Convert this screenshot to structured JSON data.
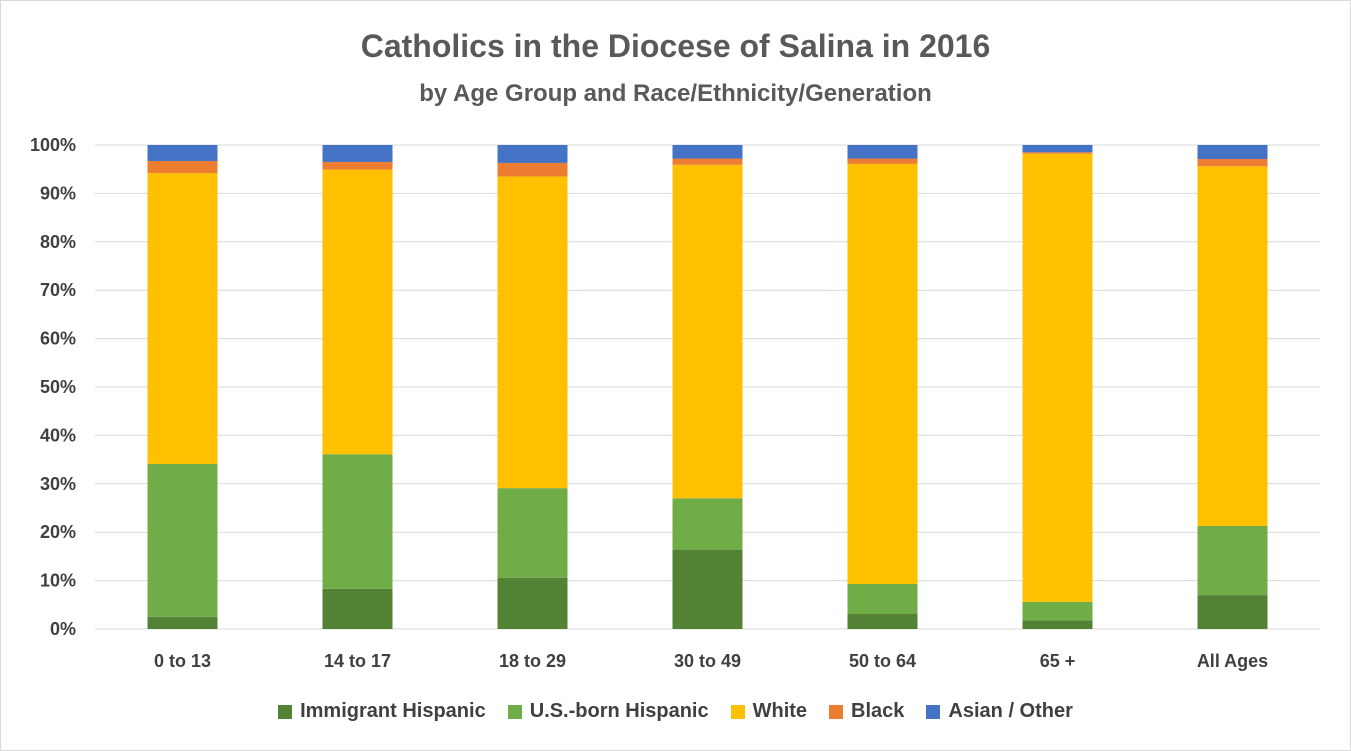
{
  "chart_data": {
    "type": "bar",
    "stacked": true,
    "title": "Catholics in the Diocese of Salina in 2016",
    "subtitle": "by Age Group and Race/Ethnicity/Generation",
    "categories": [
      "0 to 13",
      "14 to 17",
      "18 to 29",
      "30 to 49",
      "50 to 64",
      "65 +",
      "All Ages"
    ],
    "ylim": [
      0,
      100
    ],
    "yticks": [
      "0%",
      "10%",
      "20%",
      "30%",
      "40%",
      "50%",
      "60%",
      "70%",
      "80%",
      "90%",
      "100%"
    ],
    "grid": true,
    "legend_position": "bottom",
    "series": [
      {
        "name": "Immigrant Hispanic",
        "color": "#548235",
        "values": [
          2.5,
          8.3,
          10.6,
          16.4,
          3.1,
          1.8,
          7.0
        ]
      },
      {
        "name": "U.S.-born Hispanic",
        "color": "#70AD47",
        "values": [
          31.6,
          27.8,
          18.5,
          10.6,
          6.2,
          3.8,
          14.3
        ]
      },
      {
        "name": "White",
        "color": "#FFC000",
        "values": [
          60.1,
          58.8,
          64.4,
          68.9,
          86.8,
          92.6,
          74.3
        ]
      },
      {
        "name": "Black",
        "color": "#ED7D31",
        "values": [
          2.5,
          1.6,
          2.8,
          1.3,
          1.1,
          0.3,
          1.5
        ]
      },
      {
        "name": "Asian / Other",
        "color": "#4472C4",
        "values": [
          3.3,
          3.5,
          3.7,
          2.8,
          2.8,
          1.5,
          2.9
        ]
      }
    ]
  }
}
